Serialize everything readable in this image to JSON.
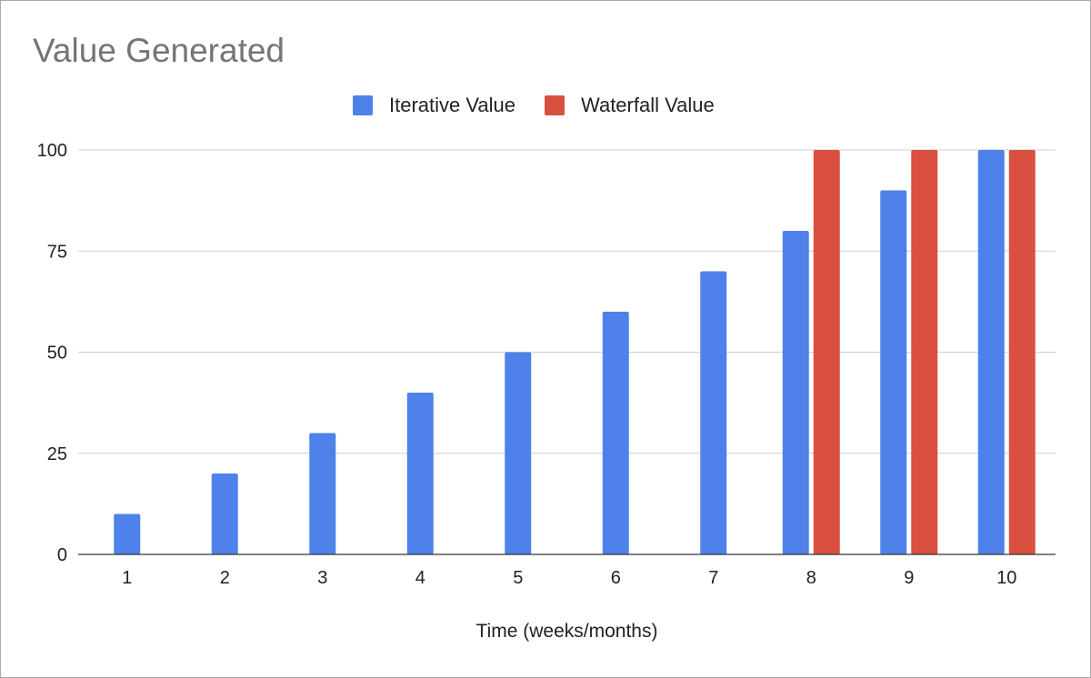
{
  "chart_data": {
    "type": "bar",
    "title": "Value Generated",
    "xlabel": "Time (weeks/months)",
    "ylabel": "",
    "categories": [
      "1",
      "2",
      "3",
      "4",
      "5",
      "6",
      "7",
      "8",
      "9",
      "10"
    ],
    "series": [
      {
        "name": "Iterative Value",
        "color": "#4F81EA",
        "values": [
          10,
          20,
          30,
          40,
          50,
          60,
          70,
          80,
          90,
          100
        ]
      },
      {
        "name": "Waterfall Value",
        "color": "#D95040",
        "values": [
          0,
          0,
          0,
          0,
          0,
          0,
          0,
          100,
          100,
          100
        ]
      }
    ],
    "ylim": [
      0,
      100
    ],
    "yticks": [
      "0",
      "25",
      "50",
      "75",
      "100"
    ],
    "grid": true,
    "legend_position": "top-center"
  }
}
